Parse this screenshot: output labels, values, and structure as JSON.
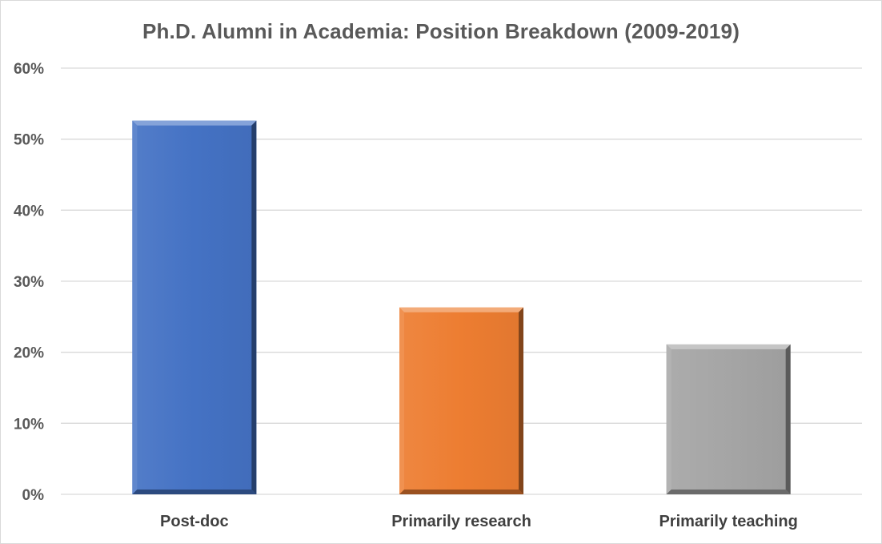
{
  "chart_data": {
    "type": "bar",
    "title": "Ph.D. Alumni in Academia: Position Breakdown (2009-2019)",
    "categories": [
      "Post-doc",
      "Primarily research",
      "Primarily teaching"
    ],
    "values": [
      52.6,
      26.3,
      21.1
    ],
    "bar_colors": [
      "#4472C4",
      "#ED7D31",
      "#A5A5A5"
    ],
    "ylim": [
      0,
      60
    ],
    "yticks": [
      0,
      10,
      20,
      30,
      40,
      50,
      60
    ],
    "ytick_format": "%",
    "xlabel": "",
    "ylabel": "",
    "grid": true,
    "legend": "none"
  }
}
